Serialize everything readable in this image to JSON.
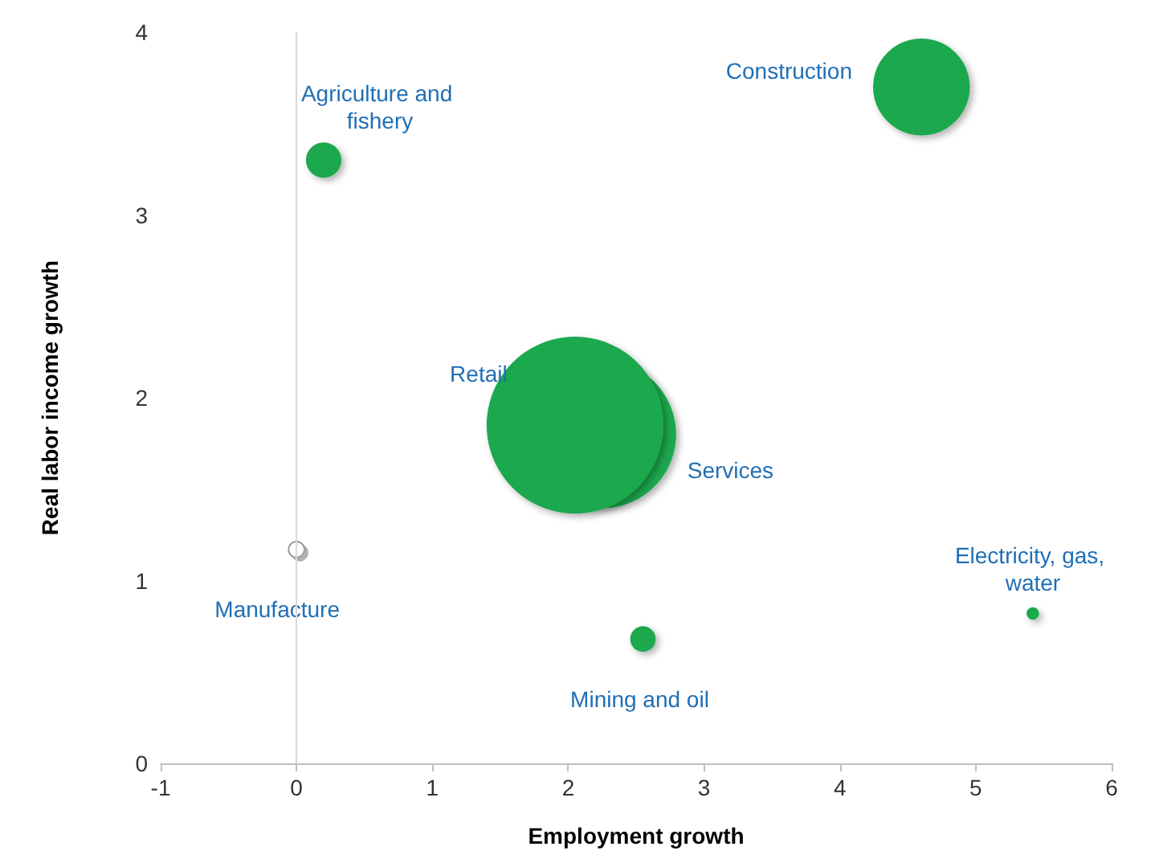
{
  "chart_data": {
    "type": "bubble",
    "xlabel": "Employment growth",
    "ylabel": "Real labor income growth",
    "xlim": [
      -1,
      6
    ],
    "xticks": [
      -1,
      0,
      1,
      2,
      3,
      4,
      5,
      6
    ],
    "ylim": [
      0,
      4
    ],
    "yticks": [
      0,
      1,
      2,
      3,
      4
    ],
    "grid": false,
    "legend": false,
    "ref_lines": [
      {
        "axis": "x",
        "value": 0,
        "color": "#d9d9d9"
      }
    ],
    "series": [
      {
        "name": "Agriculture and fishery",
        "color": "#1aa84e",
        "x": [
          0.2
        ],
        "values": [
          3.3
        ],
        "sizes": [
          0.04
        ]
      },
      {
        "name": "Construction",
        "color": "#1aa84e",
        "x": [
          4.6
        ],
        "values": [
          3.7
        ],
        "sizes": [
          0.3
        ]
      },
      {
        "name": "Services",
        "color": "#1aa84e",
        "x": [
          2.25
        ],
        "values": [
          1.8
        ],
        "sizes": [
          0.7
        ]
      },
      {
        "name": "Retail",
        "color": "#1aa84e",
        "x": [
          2.05
        ],
        "values": [
          1.85
        ],
        "sizes": [
          1
        ]
      },
      {
        "name": "Manufacture",
        "color": "#ffffff",
        "x": [
          0
        ],
        "values": [
          1.17
        ],
        "sizes": [
          0.008
        ]
      },
      {
        "name": "Electricity, gas, water",
        "color": "#1aa84e",
        "x": [
          5.42
        ],
        "values": [
          0.82
        ],
        "sizes": [
          0.005
        ]
      },
      {
        "name": "Mining and oil",
        "color": "#1aa84e",
        "x": [
          2.55
        ],
        "values": [
          0.68
        ],
        "sizes": [
          0.021
        ]
      }
    ]
  }
}
